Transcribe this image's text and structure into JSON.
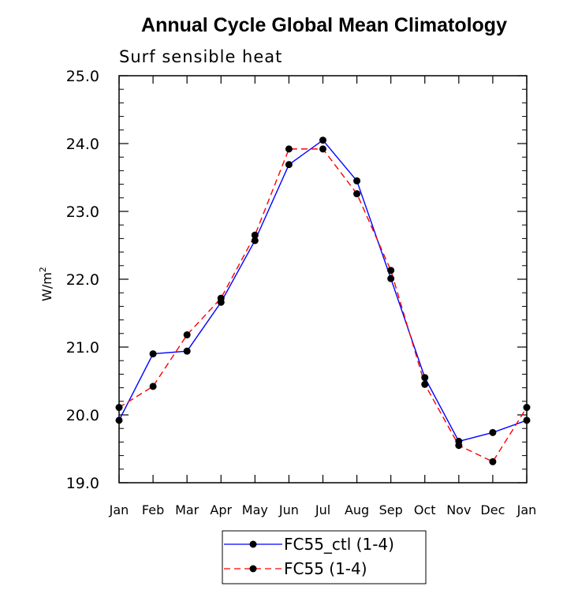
{
  "chart_data": {
    "type": "line",
    "title": "Annual Cycle Global Mean Climatology",
    "subtitle": "Surf sensible heat",
    "ylabel": "W/m",
    "ylabel_superscript": "2",
    "xlabel": "",
    "categories": [
      "Jan",
      "Feb",
      "Mar",
      "Apr",
      "May",
      "Jun",
      "Jul",
      "Aug",
      "Sep",
      "Oct",
      "Nov",
      "Dec",
      "Jan"
    ],
    "ylim": [
      19.0,
      25.0
    ],
    "yticks": [
      19.0,
      20.0,
      21.0,
      22.0,
      23.0,
      24.0,
      25.0
    ],
    "ytick_labels": [
      "19.0",
      "20.0",
      "21.0",
      "22.0",
      "23.0",
      "24.0",
      "25.0"
    ],
    "grid": false,
    "legend_position": "bottom-center",
    "series": [
      {
        "name": "FC55_ctl (1-4)",
        "color": "#0000ff",
        "dash": "solid",
        "marker_color": "#000000",
        "values": [
          19.92,
          20.9,
          20.94,
          21.66,
          22.57,
          23.69,
          24.05,
          23.45,
          22.01,
          20.55,
          19.61,
          19.74,
          19.92
        ]
      },
      {
        "name": "FC55 (1-4)",
        "color": "#ff0000",
        "dash": "dashed",
        "marker_color": "#000000",
        "values": [
          20.11,
          20.42,
          21.18,
          21.72,
          22.65,
          23.92,
          23.92,
          23.26,
          22.13,
          20.45,
          19.55,
          19.31,
          20.11
        ]
      }
    ]
  }
}
